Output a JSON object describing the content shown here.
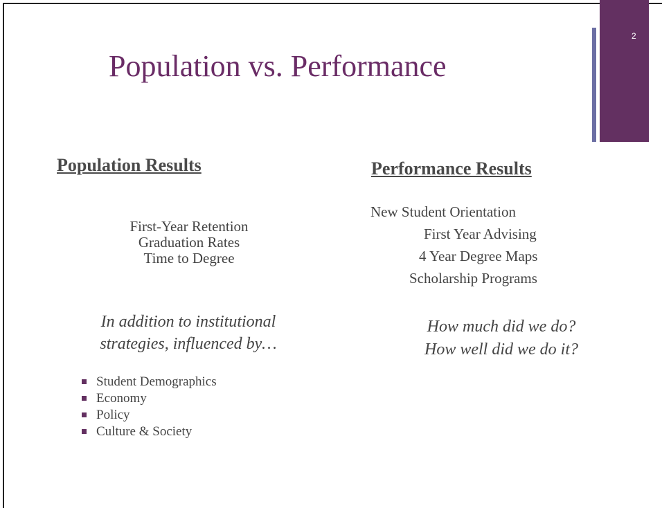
{
  "slide_number": "2",
  "title": "Population vs. Performance",
  "left": {
    "heading": "Population Results",
    "items": [
      "First-Year Retention",
      "Graduation Rates",
      "Time to Degree"
    ],
    "note": [
      "In addition to institutional",
      "strategies, influenced by…"
    ],
    "bullets": [
      "Student Demographics",
      "Economy",
      "Policy",
      "Culture & Society"
    ]
  },
  "right": {
    "heading": "Performance Results",
    "items": [
      "New Student Orientation",
      "First Year Advising",
      "4 Year Degree Maps",
      "Scholarship Programs"
    ],
    "questions": [
      "How much did we do?",
      "How well did we do it?"
    ]
  }
}
